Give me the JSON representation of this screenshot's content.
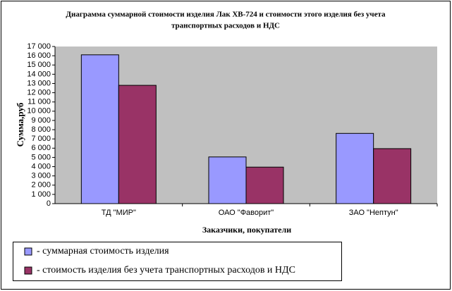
{
  "chart_data": {
    "type": "bar",
    "title": "Диаграмма суммарной стоимости изделия Лак ХВ-724 и стоимости этого изделия без учета",
    "subtitle": "транспортных расходов и НДС",
    "x_label": "Заказчики, покупатели",
    "y_label": "Сумма,руб",
    "categories": [
      "ТД \"МИР\"",
      "ОАО \"Фаворит\"",
      "ЗАО \"Нептун\""
    ],
    "series": [
      {
        "name": "- суммарная стоимость изделия",
        "color": "#9999ff",
        "values": [
          16100,
          5050,
          7600
        ]
      },
      {
        "name": "- стоимость изделия без учета транспортных расходов и НДС",
        "color": "#993366",
        "values": [
          12800,
          3950,
          5950
        ]
      }
    ],
    "ylim": [
      0,
      17000
    ],
    "yticks": [
      0,
      {
        "value": 1000,
        "label": "1 000"
      },
      {
        "value": 2000,
        "label": "2 000"
      },
      {
        "value": 3000,
        "label": "3 000"
      },
      {
        "value": 4000,
        "label": "4 000"
      },
      {
        "value": 5000,
        "label": "5 000"
      },
      {
        "value": 6000,
        "label": "6 000"
      },
      {
        "value": 7000,
        "label": "7 000"
      },
      {
        "value": 8000,
        "label": "8 000"
      },
      {
        "value": 9000,
        "label": "9 000"
      },
      {
        "value": 10000,
        "label": "10 000"
      },
      {
        "value": 11000,
        "label": "11 000"
      },
      {
        "value": 12000,
        "label": "12 000"
      },
      {
        "value": 13000,
        "label": "13 000"
      },
      {
        "value": 14000,
        "label": "14 000"
      },
      {
        "value": 15000,
        "label": "15 000"
      },
      {
        "value": 16000,
        "label": "16 000"
      },
      {
        "value": 17000,
        "label": "17 000"
      }
    ],
    "grid": false,
    "legend": "bottom"
  }
}
